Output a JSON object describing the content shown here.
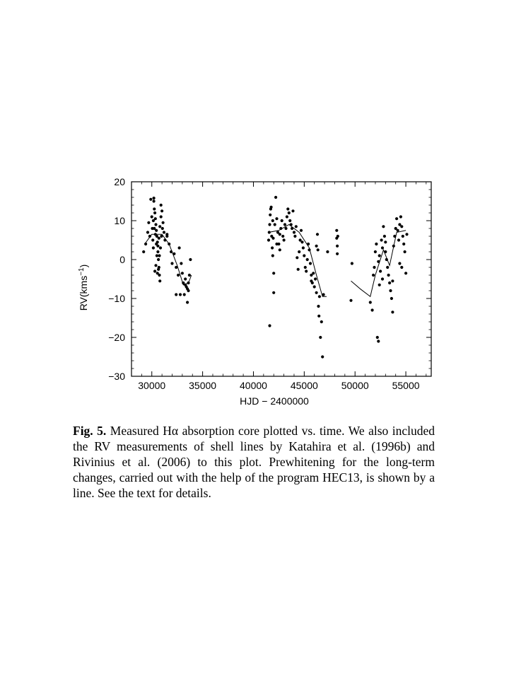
{
  "chart_data": {
    "type": "scatter",
    "xlabel": "HJD − 2400000",
    "ylabel": "RV(kms",
    "ylabel_sup": "−1",
    "ylabel_close": ")",
    "xlim": [
      28000,
      57500
    ],
    "ylim": [
      -30,
      20
    ],
    "xticks": [
      30000,
      35000,
      40000,
      45000,
      50000,
      55000
    ],
    "xtick_labels": [
      "30000",
      "35000",
      "40000",
      "45000",
      "50000",
      "55000"
    ],
    "yticks": [
      -30,
      -20,
      -10,
      0,
      10,
      20
    ],
    "ytick_labels": [
      "−30",
      "−20",
      "−10",
      "0",
      "10",
      "20"
    ],
    "grid": false,
    "series": [
      {
        "type": "scatter",
        "points": [
          [
            29200,
            2.0
          ],
          [
            29400,
            4.0
          ],
          [
            29600,
            7.0
          ],
          [
            29700,
            9.5
          ],
          [
            29800,
            6.0
          ],
          [
            29900,
            15.5
          ],
          [
            30000,
            11.0
          ],
          [
            30050,
            8.0
          ],
          [
            30100,
            5.0
          ],
          [
            30150,
            3.0
          ],
          [
            30200,
            15.0
          ],
          [
            30250,
            13.0
          ],
          [
            30300,
            12.0
          ],
          [
            30350,
            10.5
          ],
          [
            30400,
            9.0
          ],
          [
            30450,
            7.5
          ],
          [
            30500,
            6.0
          ],
          [
            30550,
            4.5
          ],
          [
            30600,
            2.0
          ],
          [
            30650,
            0.0
          ],
          [
            30700,
            -2.0
          ],
          [
            30750,
            -4.0
          ],
          [
            30800,
            -5.5
          ],
          [
            30300,
            -3.0
          ],
          [
            30400,
            -1.5
          ],
          [
            30500,
            1.0
          ],
          [
            30600,
            3.5
          ],
          [
            30700,
            5.5
          ],
          [
            30800,
            8.5
          ],
          [
            30900,
            11.0
          ],
          [
            31000,
            12.5
          ],
          [
            31100,
            9.5
          ],
          [
            31200,
            7.0
          ],
          [
            31300,
            5.0
          ],
          [
            30200,
            15.8
          ],
          [
            30900,
            14.0
          ],
          [
            30150,
            10.0
          ],
          [
            30250,
            8.0
          ],
          [
            30350,
            6.5
          ],
          [
            30450,
            4.0
          ],
          [
            30550,
            -3.5
          ],
          [
            30650,
            -2.5
          ],
          [
            30750,
            1.0
          ],
          [
            30850,
            3.0
          ],
          [
            30950,
            6.0
          ],
          [
            31050,
            8.0
          ],
          [
            31500,
            6.0
          ],
          [
            31700,
            4.0
          ],
          [
            31900,
            2.0
          ],
          [
            32000,
            -1.0
          ],
          [
            32200,
            1.5
          ],
          [
            32400,
            -2.0
          ],
          [
            32600,
            -4.0
          ],
          [
            32400,
            -9.0
          ],
          [
            32700,
            3.0
          ],
          [
            32900,
            -1.0
          ],
          [
            33000,
            -3.5
          ],
          [
            33100,
            -6.0
          ],
          [
            33200,
            -9.0
          ],
          [
            33300,
            -5.0
          ],
          [
            33400,
            -7.0
          ],
          [
            33500,
            -11.0
          ],
          [
            33600,
            -8.0
          ],
          [
            33700,
            -4.0
          ],
          [
            33800,
            0.0
          ],
          [
            33300,
            -6.5
          ],
          [
            33500,
            -7.5
          ],
          [
            33600,
            -6.0
          ],
          [
            32800,
            -9.0
          ],
          [
            31500,
            6.5
          ],
          [
            41500,
            5.0
          ],
          [
            41550,
            7.0
          ],
          [
            41600,
            9.0
          ],
          [
            41650,
            11.5
          ],
          [
            41700,
            13.0
          ],
          [
            41750,
            13.5
          ],
          [
            41800,
            6.0
          ],
          [
            41850,
            3.0
          ],
          [
            41900,
            1.0
          ],
          [
            41950,
            5.5
          ],
          [
            42000,
            -3.5
          ],
          [
            42000,
            -8.5
          ],
          [
            41600,
            -17.0
          ],
          [
            42200,
            16.0
          ],
          [
            42100,
            9.0
          ],
          [
            42300,
            10.5
          ],
          [
            42400,
            7.0
          ],
          [
            42500,
            4.0
          ],
          [
            42600,
            2.5
          ],
          [
            42700,
            8.0
          ],
          [
            42800,
            10.0
          ],
          [
            42900,
            6.0
          ],
          [
            43000,
            5.0
          ],
          [
            43100,
            9.0
          ],
          [
            43200,
            8.0
          ],
          [
            43300,
            11.0
          ],
          [
            43400,
            13.0
          ],
          [
            43500,
            12.0
          ],
          [
            43600,
            10.0
          ],
          [
            43700,
            9.0
          ],
          [
            43800,
            8.0
          ],
          [
            43900,
            12.5
          ],
          [
            44000,
            7.0
          ],
          [
            44100,
            6.0
          ],
          [
            44200,
            8.5
          ],
          [
            44300,
            0.5
          ],
          [
            44400,
            -2.5
          ],
          [
            44500,
            2.0
          ],
          [
            44600,
            5.0
          ],
          [
            44700,
            7.5
          ],
          [
            44800,
            4.5
          ],
          [
            44900,
            3.0
          ],
          [
            45000,
            1.0
          ],
          [
            45100,
            -2.0
          ],
          [
            45200,
            -3.0
          ],
          [
            45300,
            0.0
          ],
          [
            45400,
            4.0
          ],
          [
            45500,
            2.5
          ],
          [
            45600,
            -1.0
          ],
          [
            45700,
            -4.0
          ],
          [
            45800,
            -6.0
          ],
          [
            45900,
            -3.5
          ],
          [
            46000,
            -7.0
          ],
          [
            46100,
            -5.0
          ],
          [
            46200,
            -8.5
          ],
          [
            46300,
            6.5
          ],
          [
            46350,
            2.5
          ],
          [
            46400,
            -12.0
          ],
          [
            46450,
            -14.5
          ],
          [
            46500,
            -9.5
          ],
          [
            46600,
            -20.0
          ],
          [
            46700,
            -16.0
          ],
          [
            46800,
            -25.0
          ],
          [
            46900,
            -9.0
          ],
          [
            47300,
            2.0
          ],
          [
            46200,
            3.5
          ],
          [
            45700,
            -5.5
          ],
          [
            42600,
            6.5
          ],
          [
            42300,
            4.0
          ],
          [
            41900,
            10.0
          ],
          [
            48200,
            7.5
          ],
          [
            48200,
            5.5
          ],
          [
            48250,
            3.5
          ],
          [
            48250,
            1.5
          ],
          [
            48300,
            6.0
          ],
          [
            49700,
            -1.0
          ],
          [
            49600,
            -10.5
          ],
          [
            51500,
            -11.0
          ],
          [
            51700,
            -13.0
          ],
          [
            51800,
            -4.0
          ],
          [
            51900,
            -2.0
          ],
          [
            52000,
            2.0
          ],
          [
            52100,
            4.0
          ],
          [
            52200,
            -20.0
          ],
          [
            52300,
            -21.0
          ],
          [
            52300,
            -0.5
          ],
          [
            52400,
            1.0
          ],
          [
            52500,
            -3.0
          ],
          [
            52600,
            5.0
          ],
          [
            52700,
            3.0
          ],
          [
            52800,
            8.5
          ],
          [
            52900,
            6.0
          ],
          [
            53000,
            2.0
          ],
          [
            53100,
            0.0
          ],
          [
            53200,
            -2.0
          ],
          [
            53300,
            -4.0
          ],
          [
            53400,
            -6.0
          ],
          [
            53500,
            -8.0
          ],
          [
            53600,
            -10.0
          ],
          [
            53700,
            -13.5
          ],
          [
            53800,
            3.5
          ],
          [
            53900,
            6.0
          ],
          [
            54000,
            8.0
          ],
          [
            54100,
            10.5
          ],
          [
            54200,
            7.5
          ],
          [
            54300,
            5.0
          ],
          [
            54400,
            9.0
          ],
          [
            54500,
            11.0
          ],
          [
            54600,
            8.5
          ],
          [
            54700,
            6.0
          ],
          [
            54800,
            4.0
          ],
          [
            54900,
            2.0
          ],
          [
            55000,
            -3.5
          ],
          [
            54600,
            -2.0
          ],
          [
            54400,
            -1.0
          ],
          [
            53700,
            -5.5
          ],
          [
            53000,
            4.5
          ],
          [
            52700,
            -5.0
          ],
          [
            52400,
            -6.5
          ],
          [
            55100,
            6.5
          ]
        ]
      },
      {
        "type": "line",
        "segments": [
          [
            [
              29300,
              4.0
            ],
            [
              30000,
              6.5
            ],
            [
              31000,
              6.5
            ],
            [
              31700,
              4.0
            ],
            [
              32500,
              -1.5
            ],
            [
              33100,
              -6.5
            ],
            [
              33600,
              -6.0
            ],
            [
              33900,
              -4.0
            ]
          ],
          [
            [
              41500,
              7.0
            ],
            [
              42500,
              7.5
            ],
            [
              43500,
              9.0
            ],
            [
              44500,
              7.0
            ],
            [
              45500,
              3.0
            ],
            [
              46200,
              -4.0
            ],
            [
              46800,
              -9.5
            ],
            [
              47200,
              -9.5
            ]
          ],
          [
            [
              49600,
              -5.5
            ],
            [
              50500,
              -7.5
            ],
            [
              51500,
              -9.5
            ],
            [
              52000,
              -4.0
            ],
            [
              52800,
              2.5
            ],
            [
              53400,
              -1.5
            ],
            [
              54100,
              7.0
            ],
            [
              55000,
              7.5
            ]
          ]
        ]
      }
    ]
  },
  "caption": {
    "label": "Fig. 5.",
    "text": "Measured Hα absorption core plotted vs. time. We also included the RV measurements of shell lines by Katahira et al. (1996b) and Rivinius et al. (2006) to this plot. Prewhitening for the long-term changes, carried out with the help of the program HEC13, is shown by a line. See the text for details."
  }
}
